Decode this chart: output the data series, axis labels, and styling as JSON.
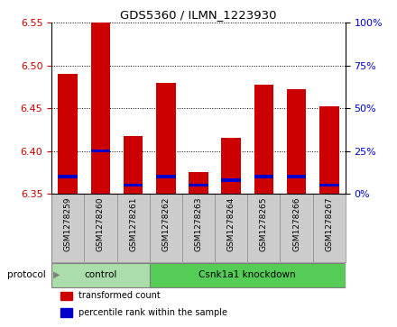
{
  "title": "GDS5360 / ILMN_1223930",
  "samples": [
    "GSM1278259",
    "GSM1278260",
    "GSM1278261",
    "GSM1278262",
    "GSM1278263",
    "GSM1278264",
    "GSM1278265",
    "GSM1278266",
    "GSM1278267"
  ],
  "red_values": [
    6.49,
    6.55,
    6.417,
    6.48,
    6.375,
    6.415,
    6.478,
    6.472,
    6.452
  ],
  "blue_values_pct": [
    10,
    25,
    5,
    10,
    5,
    8,
    10,
    10,
    5
  ],
  "y_min": 6.35,
  "y_max": 6.55,
  "y_ticks": [
    6.35,
    6.4,
    6.45,
    6.5,
    6.55
  ],
  "right_y_ticks": [
    0,
    25,
    50,
    75,
    100
  ],
  "right_y_labels": [
    "0%",
    "25%",
    "50%",
    "75%",
    "100%"
  ],
  "bar_color": "#cc0000",
  "blue_color": "#0000cc",
  "protocol_groups": [
    {
      "label": "control",
      "start": 0,
      "end": 2,
      "color": "#aaddaa"
    },
    {
      "label": "Csnk1a1 knockdown",
      "start": 3,
      "end": 8,
      "color": "#55cc55"
    }
  ],
  "protocol_label": "protocol",
  "legend_items": [
    {
      "color": "#cc0000",
      "label": "transformed count"
    },
    {
      "color": "#0000cc",
      "label": "percentile rank within the sample"
    }
  ],
  "bg_color": "#ffffff",
  "xtick_bg_color": "#cccccc",
  "bar_width": 0.6
}
